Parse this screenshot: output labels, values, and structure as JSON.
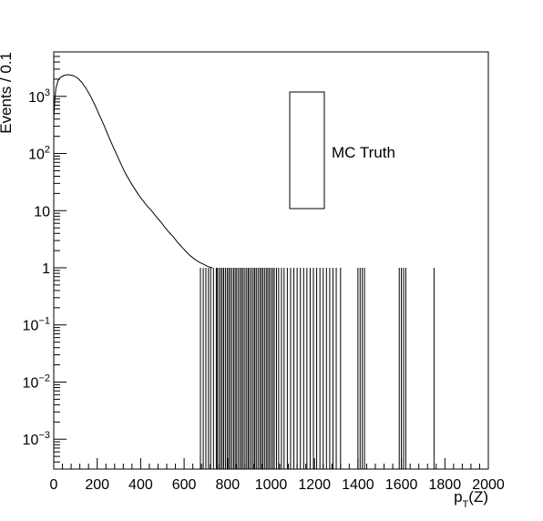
{
  "chart_data": {
    "type": "histogram",
    "xlabel": "p",
    "xlabel_sub": "T",
    "xlabel_suffix": "(Z)",
    "ylabel": "Events / 0.1",
    "xlim": [
      0,
      2000
    ],
    "ylim": [
      0.0003,
      6000
    ],
    "yscale": "log",
    "grid": false,
    "x_ticks": [
      0,
      200,
      400,
      600,
      800,
      1000,
      1200,
      1400,
      1600,
      1800,
      2000
    ],
    "x_tick_labels": [
      "0",
      "200",
      "400",
      "600",
      "800",
      "1000",
      "1200",
      "1400",
      "1600",
      "1800",
      "2000"
    ],
    "y_ticks": [
      {
        "value": 0.001,
        "base": "10",
        "exp": "−3"
      },
      {
        "value": 0.01,
        "base": "10",
        "exp": "−2"
      },
      {
        "value": 0.1,
        "base": "10",
        "exp": "−1"
      },
      {
        "value": 1,
        "base": "1",
        "exp": ""
      },
      {
        "value": 10,
        "base": "10",
        "exp": ""
      },
      {
        "value": 100,
        "base": "10",
        "exp": "2"
      },
      {
        "value": 1000,
        "base": "10",
        "exp": "3"
      }
    ],
    "legend": {
      "label": "MC Truth",
      "position": "top-right"
    },
    "series": [
      {
        "smooth_curve": [
          [
            0,
            400
          ],
          [
            5,
            900
          ],
          [
            10,
            1400
          ],
          [
            20,
            1900
          ],
          [
            30,
            2150
          ],
          [
            50,
            2350
          ],
          [
            70,
            2400
          ],
          [
            90,
            2300
          ],
          [
            110,
            2100
          ],
          [
            130,
            1750
          ],
          [
            150,
            1350
          ],
          [
            170,
            1000
          ],
          [
            190,
            700
          ],
          [
            210,
            470
          ],
          [
            230,
            320
          ],
          [
            250,
            210
          ],
          [
            270,
            140
          ],
          [
            290,
            95
          ],
          [
            310,
            65
          ],
          [
            330,
            45
          ],
          [
            350,
            33
          ],
          [
            370,
            25
          ],
          [
            390,
            19
          ],
          [
            410,
            15
          ],
          [
            430,
            12
          ],
          [
            450,
            10
          ],
          [
            470,
            8
          ],
          [
            490,
            6.5
          ],
          [
            510,
            5.2
          ],
          [
            530,
            4.2
          ],
          [
            550,
            3.5
          ],
          [
            570,
            2.8
          ],
          [
            590,
            2.3
          ],
          [
            610,
            1.9
          ],
          [
            630,
            1.6
          ],
          [
            650,
            1.4
          ],
          [
            670,
            1.25
          ],
          [
            690,
            1.15
          ],
          [
            710,
            1.05
          ],
          [
            730,
            1.0
          ]
        ],
        "high_pt_bins": [
          675,
          688,
          700,
          712,
          722,
          735,
          748,
          752,
          760,
          768,
          775,
          782,
          790,
          798,
          805,
          812,
          820,
          828,
          835,
          842,
          850,
          858,
          865,
          872,
          880,
          888,
          895,
          902,
          910,
          918,
          925,
          932,
          940,
          948,
          955,
          962,
          970,
          978,
          985,
          992,
          1000,
          1008,
          1015,
          1025,
          1035,
          1048,
          1060,
          1075,
          1090,
          1105,
          1120,
          1135,
          1150,
          1165,
          1180,
          1195,
          1210,
          1225,
          1240,
          1255,
          1270,
          1285,
          1300,
          1320,
          1400,
          1410,
          1420,
          1430,
          1590,
          1600,
          1610,
          1620,
          1750
        ],
        "high_pt_bin_value": 1
      }
    ]
  }
}
